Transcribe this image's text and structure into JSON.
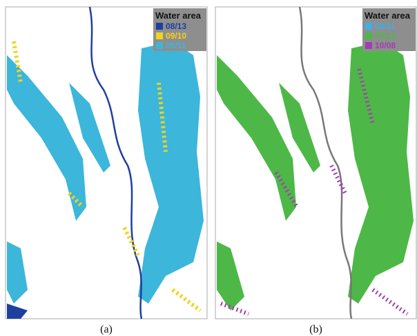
{
  "panels": [
    {
      "caption": "(a)",
      "legend": {
        "title": "Water area",
        "entries": [
          {
            "label": "08/13",
            "color": "#1f3f9f"
          },
          {
            "label": "09/10",
            "color": "#f2d21e"
          },
          {
            "label": "08/11",
            "color": "#3cb6da"
          }
        ]
      }
    },
    {
      "caption": "(b)",
      "legend": {
        "title": "Water area",
        "entries": [
          {
            "label": "08/11",
            "color": "#3cb0e6"
          },
          {
            "label": "09/12",
            "color": "#4db847"
          },
          {
            "label": "10/08",
            "color": "#a23cb2"
          }
        ]
      }
    }
  ]
}
